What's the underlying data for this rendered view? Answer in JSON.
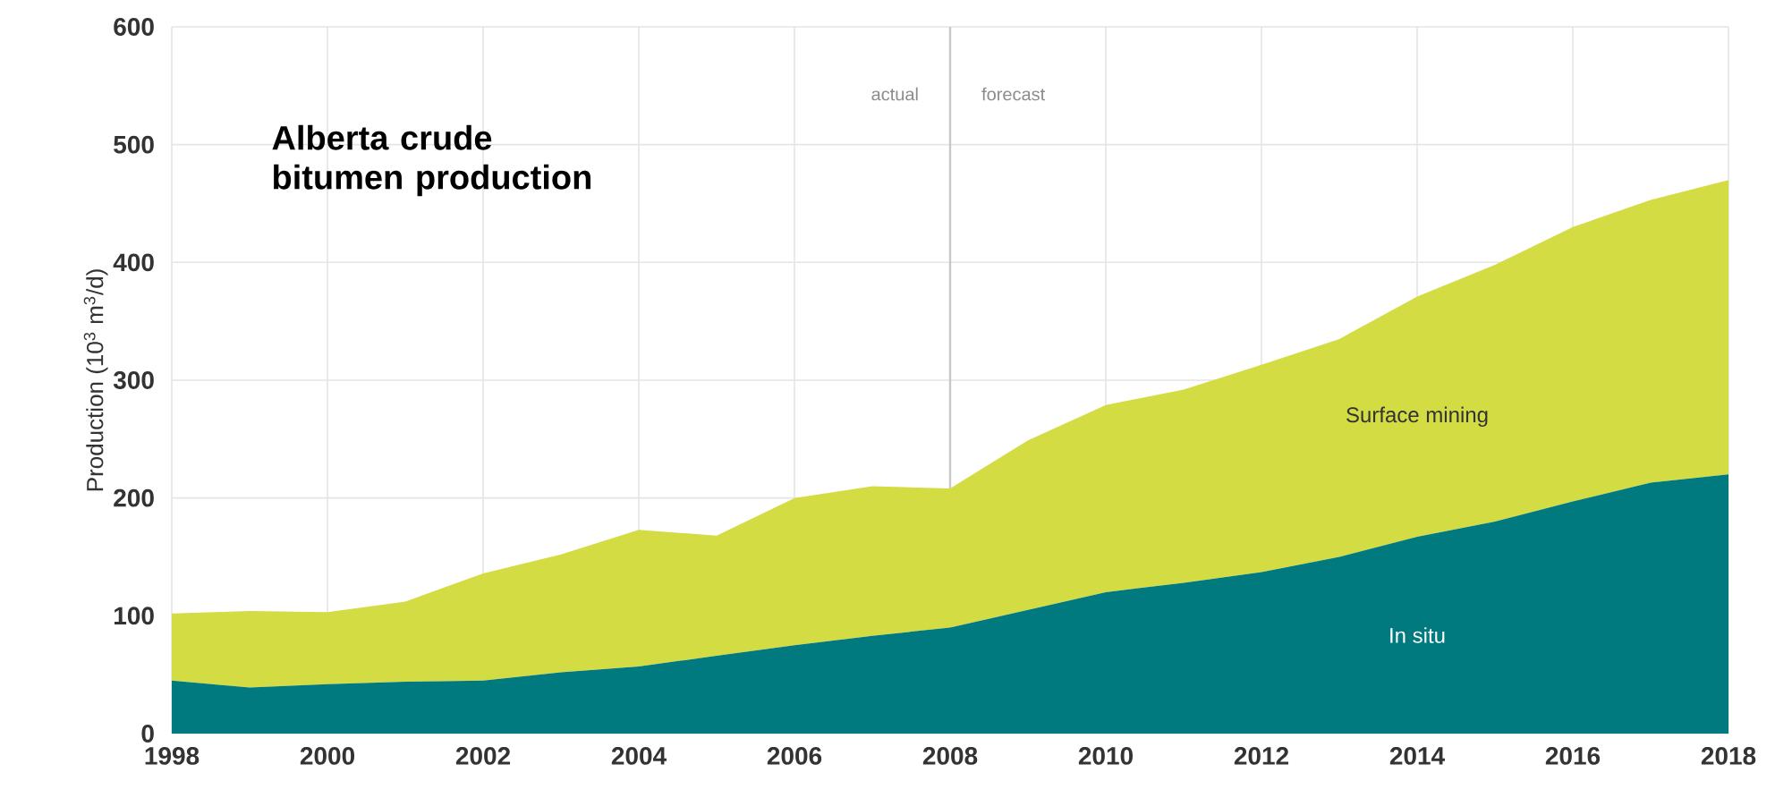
{
  "chart_data": {
    "type": "area",
    "title": "Alberta crude bitumen production",
    "ylabel": "Production (10$^{3}$ m$^{3}$/d)",
    "stacked": true,
    "grid": true,
    "x": [
      1998,
      1999,
      2000,
      2001,
      2002,
      2003,
      2004,
      2005,
      2006,
      2007,
      2008,
      2009,
      2010,
      2011,
      2012,
      2013,
      2014,
      2015,
      2016,
      2017,
      2018
    ],
    "series": [
      {
        "name": "In situ",
        "color": "#007a7e",
        "values": [
          45,
          39,
          42,
          44,
          45,
          52,
          57,
          66,
          75,
          83,
          90,
          105,
          120,
          128,
          137,
          150,
          167,
          180,
          197,
          213,
          220
        ]
      },
      {
        "name": "Surface mining",
        "color": "#d4dc44",
        "values": [
          57,
          65,
          61,
          68,
          91,
          100,
          116,
          102,
          125,
          127,
          118,
          144,
          159,
          164,
          176,
          185,
          204,
          218,
          233,
          240,
          250
        ]
      }
    ],
    "xlim": [
      1998,
      2018
    ],
    "xticks": [
      1998,
      2000,
      2002,
      2004,
      2006,
      2008,
      2010,
      2012,
      2014,
      2016,
      2018
    ],
    "ylim": [
      0,
      600
    ],
    "yticks": [
      0,
      100,
      200,
      300,
      400,
      500,
      600
    ],
    "ref_lines": [
      {
        "axis": "x",
        "value": 2008,
        "color": "#c8c8c8"
      }
    ],
    "annotations": [
      "actual",
      "forecast"
    ]
  }
}
